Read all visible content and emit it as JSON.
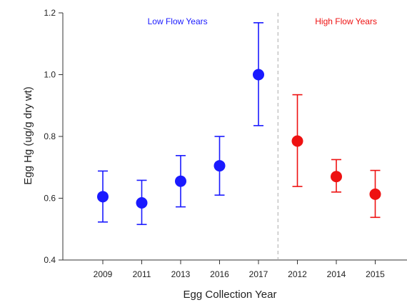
{
  "chart_data": {
    "type": "scatter",
    "xlabel": "Egg Collection Year",
    "ylabel": "Egg Hg (ug/g dry wt)",
    "ylim": [
      0.4,
      1.2
    ],
    "yticks": [
      "0.4",
      "0.6",
      "0.8",
      "1.0",
      "1.2"
    ],
    "categories": [
      "2009",
      "2011",
      "2013",
      "2016",
      "2017",
      "2012",
      "2014",
      "2015"
    ],
    "groups": [
      {
        "label": "Low Flow Years",
        "color": "#1a1aff",
        "start": 0,
        "end": 4
      },
      {
        "label": "High Flow Years",
        "color": "#ee1111",
        "start": 5,
        "end": 7
      }
    ],
    "series": [
      {
        "values": [
          0.605,
          0.585,
          0.655,
          0.705,
          1.0,
          0.785,
          0.67,
          0.613
        ],
        "error_low": [
          0.523,
          0.515,
          0.572,
          0.61,
          0.835,
          0.638,
          0.62,
          0.538
        ],
        "error_high": [
          0.688,
          0.658,
          0.738,
          0.8,
          1.168,
          0.935,
          0.725,
          0.69
        ]
      }
    ],
    "divider": "dashed vertical line between 2017 and 2012",
    "grid": false,
    "legend": "none"
  }
}
